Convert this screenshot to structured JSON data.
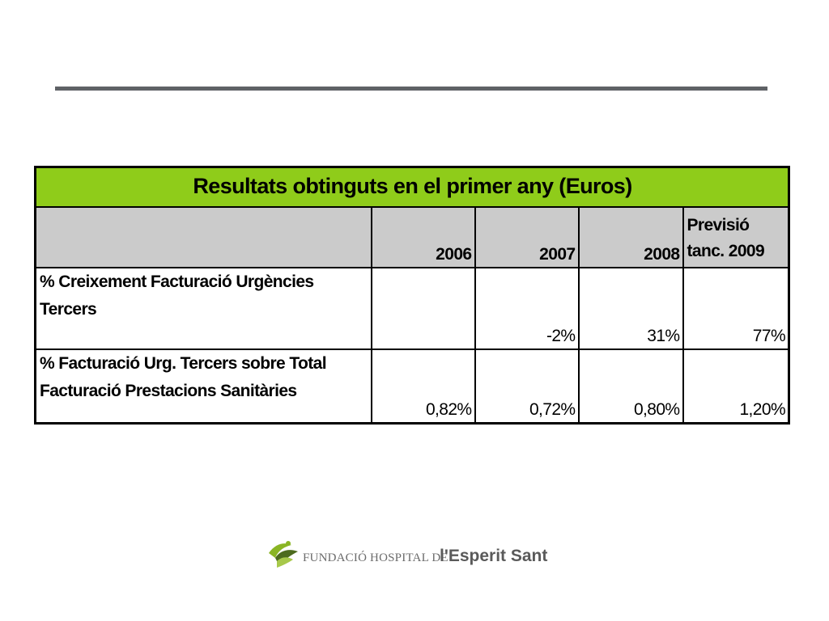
{
  "table": {
    "title": "Resultats obtinguts en el primer any (Euros)",
    "columns": [
      "",
      "2006",
      "2007",
      "2008"
    ],
    "forecast_header_line1": "Previsió",
    "forecast_header_line2": "tanc. 2009",
    "rows": [
      {
        "label_line1": "% Creixement Facturació Urgències",
        "label_line2": "Tercers",
        "values": [
          "",
          "-2%",
          "31%",
          "77%"
        ]
      },
      {
        "label_line1": "% Facturació Urg. Tercers sobre Total",
        "label_line2": "Facturació Prestacions Sanitàries",
        "values": [
          "0,82%",
          "0,72%",
          "0,80%",
          "1,20%"
        ]
      }
    ]
  },
  "logo": {
    "small_text": "FUNDACIÓ HOSPITAL DE",
    "big_text": "l'Esperit Sant",
    "colors": {
      "leaf_green": "#8ab524",
      "leaf_dark": "#4d6b1e",
      "text_gray": "#5a5a5a"
    }
  },
  "colors": {
    "title_green": "#8fcc1a",
    "header_gray": "#cbcbcb",
    "rule_gray": "#5f6266"
  }
}
